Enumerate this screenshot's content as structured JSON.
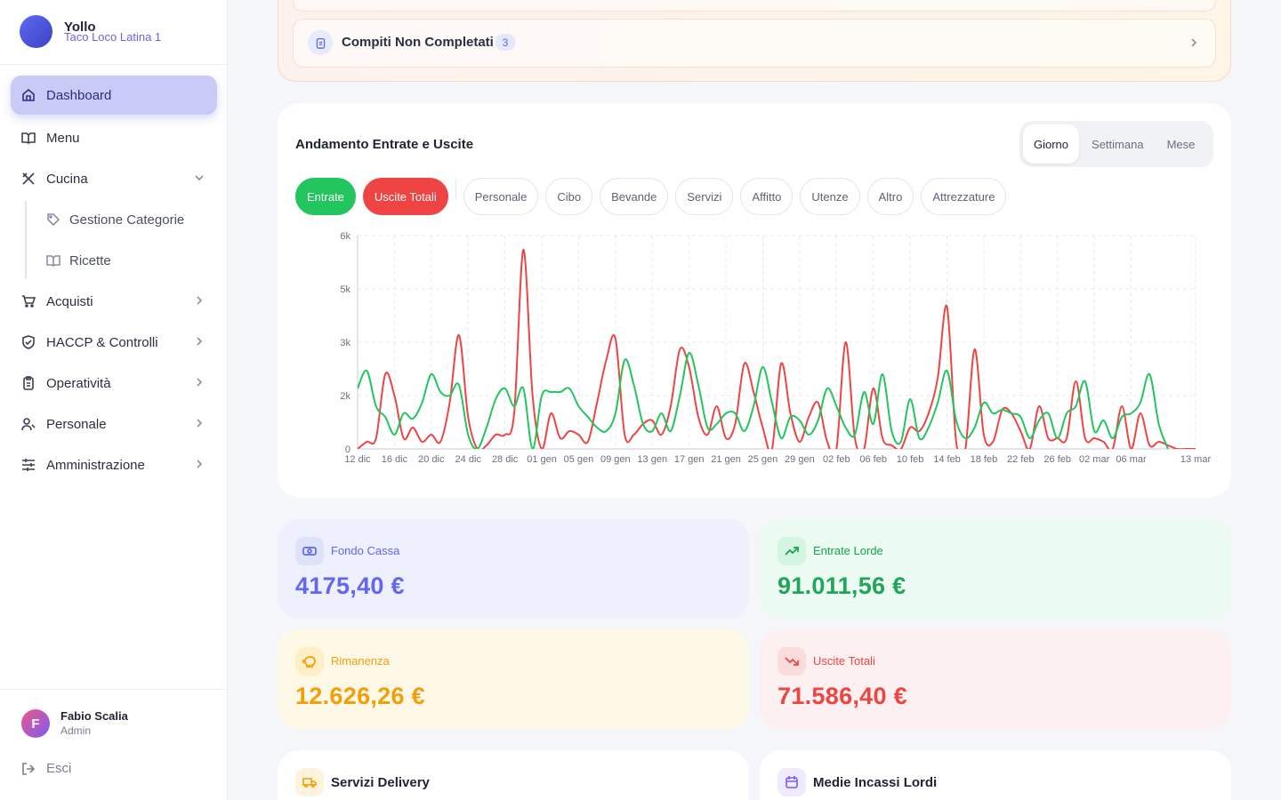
{
  "sidebar": {
    "brand": "Yollo",
    "location": "Taco Loco Latina 1",
    "nav": [
      {
        "label": "Dashboard"
      },
      {
        "label": "Menu"
      },
      {
        "label": "Cucina",
        "children": [
          "Gestione Categorie",
          "Ricette"
        ]
      },
      {
        "label": "Acquisti"
      },
      {
        "label": "HACCP & Controlli"
      },
      {
        "label": "Operatività"
      },
      {
        "label": "Personale"
      },
      {
        "label": "Amministrazione"
      }
    ],
    "user": {
      "initial": "F",
      "name": "Fabio Scalia",
      "role": "Admin"
    },
    "logout": "Esci"
  },
  "tasks": {
    "label": "Compiti Non Completati",
    "count": "3"
  },
  "chart_card": {
    "periods": [
      "Giorno",
      "Settimana",
      "Mese"
    ],
    "filters": [
      "Personale",
      "Cibo",
      "Bevande",
      "Servizi",
      "Affitto",
      "Utenze",
      "Altro",
      "Attrezzature"
    ]
  },
  "chart_data": {
    "type": "line",
    "title": "Andamento Entrate e Uscite",
    "categories": [
      "12 dic",
      null,
      null,
      null,
      "16 dic",
      null,
      null,
      null,
      "20 dic",
      null,
      null,
      null,
      "24 dic",
      null,
      null,
      null,
      "28 dic",
      null,
      null,
      null,
      "01 gen",
      null,
      null,
      null,
      "05 gen",
      null,
      null,
      null,
      "09 gen",
      null,
      null,
      null,
      "13 gen",
      null,
      null,
      null,
      "17 gen",
      null,
      null,
      null,
      "21 gen",
      null,
      null,
      null,
      "25 gen",
      null,
      null,
      null,
      "29 gen",
      null,
      null,
      null,
      "02 feb",
      null,
      null,
      null,
      "06 feb",
      null,
      null,
      null,
      "10 feb",
      null,
      null,
      null,
      "14 feb",
      null,
      null,
      null,
      "18 feb",
      null,
      null,
      null,
      "22 feb",
      null,
      null,
      null,
      "26 feb",
      null,
      null,
      null,
      "02 mar",
      null,
      null,
      null,
      "06 mar",
      null,
      null,
      null,
      null,
      null,
      null,
      "13 mar"
    ],
    "series": [
      {
        "name": "Entrate",
        "color": "#22c55e",
        "values": [
          1700,
          2200,
          1200,
          900,
          400,
          1000,
          850,
          1300,
          2100,
          1600,
          1500,
          1800,
          400,
          0,
          600,
          1400,
          1700,
          1200,
          1700,
          0,
          1500,
          1600,
          1600,
          1700,
          1200,
          900,
          600,
          500,
          1000,
          2500,
          1800,
          700,
          500,
          1000,
          500,
          1500,
          2700,
          1800,
          600,
          700,
          1000,
          1000,
          500,
          1200,
          2300,
          1300,
          300,
          900,
          800,
          400,
          800,
          1700,
          1200,
          600,
          400,
          1600,
          700,
          2100,
          500,
          200,
          1400,
          300,
          600,
          1300,
          2200,
          800,
          300,
          600,
          1300,
          1000,
          1100,
          1000,
          900,
          300,
          800,
          1000,
          300,
          1000,
          1200,
          1900,
          500,
          800,
          300,
          900,
          1000,
          1300,
          2100,
          700,
          0,
          null,
          null,
          null
        ]
      },
      {
        "name": "Uscite Totali",
        "color": "#ef4444",
        "values": [
          0,
          200,
          300,
          2100,
          1500,
          300,
          600,
          200,
          400,
          200,
          1300,
          3200,
          900,
          0,
          100,
          400,
          400,
          1000,
          5600,
          1500,
          0,
          1000,
          300,
          500,
          400,
          200,
          1300,
          2500,
          3100,
          400,
          400,
          700,
          800,
          400,
          1200,
          2800,
          2300,
          900,
          400,
          1200,
          300,
          700,
          2400,
          1600,
          600,
          0,
          2400,
          1000,
          200,
          900,
          1300,
          200,
          0,
          3000,
          300,
          0,
          1700,
          300,
          100,
          0,
          600,
          500,
          1000,
          2000,
          4000,
          200,
          0,
          2800,
          400,
          200,
          1100,
          1000,
          500,
          0,
          1200,
          300,
          300,
          300,
          1900,
          300,
          300,
          200,
          0,
          1200,
          0,
          1000,
          100,
          200,
          100,
          0,
          0,
          0
        ]
      }
    ],
    "ylim": [
      0,
      6000
    ],
    "yticks": [
      0,
      {
        "value": 1500,
        "label": "2k"
      },
      {
        "value": 3000,
        "label": "3k"
      },
      {
        "value": 4500,
        "label": "5k"
      },
      {
        "value": 6000,
        "label": "6k"
      }
    ],
    "grid": true
  },
  "stats": [
    {
      "label": "Fondo Cassa",
      "value": "4175,40 €"
    },
    {
      "label": "Entrate Lorde",
      "value": "91.011,56 €"
    },
    {
      "label": "Rimanenza",
      "value": "12.626,26 €"
    },
    {
      "label": "Uscite Totali",
      "value": "71.586,40 €"
    }
  ],
  "panels": [
    "Servizi Delivery",
    "Medie Incassi Lordi"
  ]
}
